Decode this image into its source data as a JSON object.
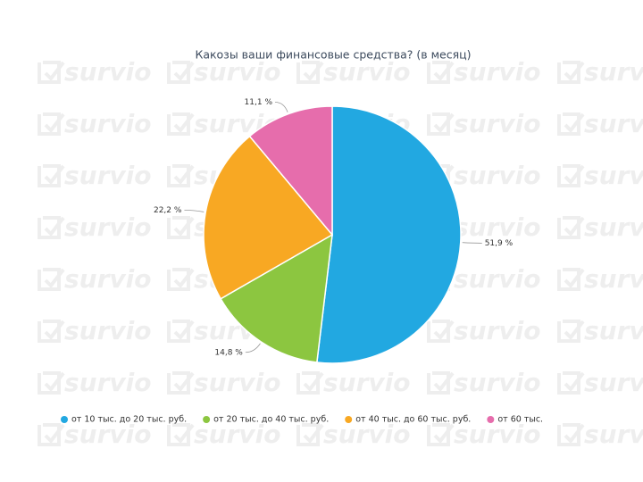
{
  "watermark": "survio",
  "chart_data": {
    "type": "pie",
    "title": "Какозы ваши финансовые средства? (в месяц)",
    "categories": [
      "от 10 тыс. до 20 тыс. руб.",
      "от 20 тыс. до 40 тыс. руб.",
      "от 40 тыс. до 60 тыс. руб.",
      "от 60 тыс."
    ],
    "values": [
      51.9,
      14.8,
      22.2,
      11.1
    ],
    "value_labels": [
      "51,9 %",
      "14,8 %",
      "22,2 %",
      "11,1 %"
    ],
    "colors": [
      "#22a8e1",
      "#8cc640",
      "#f8a823",
      "#e66dac"
    ],
    "legend": "bottom"
  }
}
